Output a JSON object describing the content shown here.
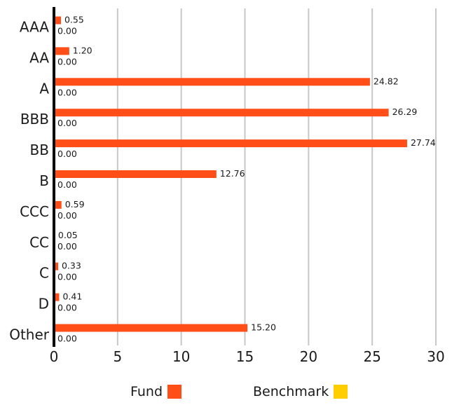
{
  "chart_data": {
    "type": "bar",
    "orientation": "horizontal",
    "categories": [
      "AAA",
      "AA",
      "A",
      "BBB",
      "BB",
      "B",
      "CCC",
      "CC",
      "C",
      "D",
      "Other"
    ],
    "series": [
      {
        "name": "Fund",
        "color": "#ff4e17",
        "values": [
          0.55,
          1.2,
          24.82,
          26.29,
          27.74,
          12.76,
          0.59,
          0.05,
          0.33,
          0.41,
          15.2
        ],
        "labels": [
          "0.55",
          "1.20",
          "24.82",
          "26.29",
          "27.74",
          "12.76",
          "0.59",
          "0.05",
          "0.33",
          "0.41",
          "15.20"
        ]
      },
      {
        "name": "Benchmark",
        "color": "#ffce00",
        "values": [
          0,
          0,
          0,
          0,
          0,
          0,
          0,
          0,
          0,
          0,
          0
        ],
        "labels": [
          "0.00",
          "0.00",
          "0.00",
          "0.00",
          "0.00",
          "0.00",
          "0.00",
          "0.00",
          "0.00",
          "0.00",
          "0.00"
        ]
      }
    ],
    "x_ticks": [
      "0",
      "5",
      "10",
      "15",
      "20",
      "25",
      "30"
    ],
    "xlim": [
      0,
      30
    ],
    "grid": "vertical",
    "legend_position": "bottom"
  }
}
